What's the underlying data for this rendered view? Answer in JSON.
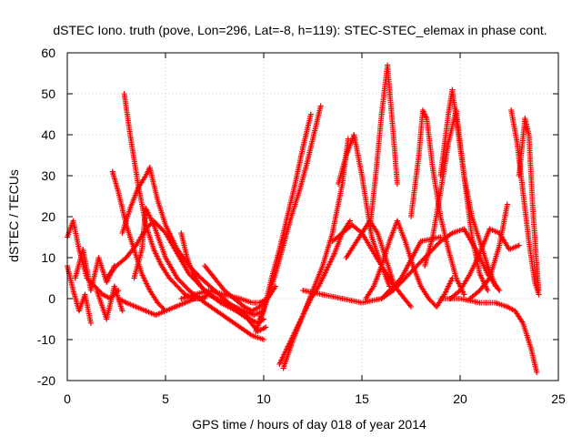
{
  "chart_data": {
    "type": "scatter",
    "title": "dSTEC Iono. truth (pove, Lon=296, Lat=-8, h=119): STEC-STEC_elemax in phase cont.",
    "xlabel": "GPS time / hours of day 018 of year 2014",
    "ylabel": "dSTEC  / TECUs",
    "xlim": [
      0,
      25
    ],
    "ylim": [
      -20,
      60
    ],
    "xticks": [
      0,
      5,
      10,
      15,
      20,
      25
    ],
    "yticks": [
      -20,
      -10,
      0,
      10,
      20,
      30,
      40,
      50,
      60
    ],
    "grid": true,
    "marker": "plus",
    "color": "#ff0000",
    "series": [
      {
        "x": [
          0.0,
          0.3,
          0.6,
          1.0,
          1.4,
          1.8,
          2.2,
          2.6
        ],
        "y": [
          15,
          19,
          12,
          5,
          3,
          1,
          0,
          2
        ]
      },
      {
        "x": [
          0.0,
          0.3,
          0.6,
          0.9,
          1.2
        ],
        "y": [
          8,
          2,
          -3,
          1,
          -6
        ]
      },
      {
        "x": [
          0.4,
          0.8,
          1.2,
          1.6,
          2.0,
          2.4
        ],
        "y": [
          5,
          12,
          2,
          10,
          4,
          8
        ]
      },
      {
        "x": [
          1.5,
          2.0,
          2.4,
          2.8
        ],
        "y": [
          2,
          -5,
          3,
          -3
        ]
      },
      {
        "x": [
          2.3,
          2.6,
          3.0,
          3.4,
          3.8,
          4.2,
          4.6,
          5.0
        ],
        "y": [
          31,
          26,
          18,
          12,
          6,
          2,
          -1,
          -3
        ]
      },
      {
        "x": [
          2.9,
          3.2,
          3.6,
          4.0,
          4.4,
          4.8,
          5.2,
          5.6,
          6.0,
          6.4,
          6.8,
          7.2
        ],
        "y": [
          50,
          40,
          28,
          18,
          12,
          8,
          5,
          3,
          1,
          0,
          0,
          1
        ]
      },
      {
        "x": [
          2.8,
          3.2,
          3.6,
          4.0,
          4.2
        ],
        "y": [
          16,
          22,
          27,
          30,
          32
        ]
      },
      {
        "x": [
          4.2,
          4.6,
          5.0,
          5.6,
          6.2,
          6.8,
          7.5,
          8.2,
          8.8,
          9.3,
          9.7,
          10.0
        ],
        "y": [
          32,
          24,
          18,
          12,
          8,
          5,
          2,
          -1,
          -3,
          -5,
          -6,
          -5
        ]
      },
      {
        "x": [
          2.0,
          2.5,
          3.0,
          3.5,
          4.0,
          4.4,
          5.0,
          5.6,
          6.2,
          7.0,
          7.8,
          8.6,
          9.2,
          9.7,
          10.1
        ],
        "y": [
          5,
          8,
          10,
          13,
          17,
          19,
          16,
          11,
          6,
          2,
          -1,
          -3,
          -5,
          -8,
          -7
        ]
      },
      {
        "x": [
          3.4,
          3.8,
          4.0,
          4.4,
          5.0,
          5.6,
          6.2,
          7.0,
          7.6,
          8.2,
          8.8,
          9.4,
          10.0
        ],
        "y": [
          5,
          12,
          22,
          18,
          10,
          5,
          2,
          -1,
          -3,
          -5,
          -7,
          -9,
          -10
        ]
      },
      {
        "x": [
          2.6,
          3.0,
          3.5,
          4.0,
          4.5,
          5.0,
          5.5,
          6.0,
          6.5,
          7.0
        ],
        "y": [
          0,
          -1,
          -2,
          -3,
          -4,
          -3,
          -2,
          -1,
          0,
          0
        ]
      },
      {
        "x": [
          5.8,
          6.1,
          6.4,
          6.8,
          7.2,
          7.6,
          8.0,
          8.5,
          9.0,
          9.5,
          10.0
        ],
        "y": [
          16,
          10,
          6,
          3,
          1,
          0,
          -1,
          -2,
          -3,
          -4,
          -3
        ]
      },
      {
        "x": [
          7.0,
          7.5,
          8.0,
          8.5,
          9.0,
          9.4,
          9.8,
          10.2,
          10.6
        ],
        "y": [
          8,
          5,
          2,
          0,
          -2,
          -3,
          -2,
          0,
          3
        ]
      },
      {
        "x": [
          5.8,
          6.5,
          7.2,
          8.0,
          8.8,
          9.4,
          9.8,
          10.2
        ],
        "y": [
          0,
          1,
          2,
          1,
          0,
          -1,
          -1,
          0
        ]
      },
      {
        "x": [
          9.6,
          10.0,
          10.4,
          10.8,
          11.2,
          11.6,
          12.0,
          12.4
        ],
        "y": [
          -8,
          -3,
          5,
          12,
          20,
          28,
          37,
          45
        ]
      },
      {
        "x": [
          9.8,
          10.2,
          10.6,
          11.0,
          11.4,
          11.8,
          12.2,
          12.6,
          12.9
        ],
        "y": [
          -5,
          0,
          6,
          13,
          20,
          26,
          33,
          41,
          47
        ]
      },
      {
        "x": [
          10.8,
          11.2,
          11.6,
          12.0,
          12.4,
          12.8,
          13.2,
          13.6,
          14.0,
          14.4
        ],
        "y": [
          -16,
          -12,
          -8,
          -4,
          0,
          3,
          7,
          11,
          16,
          19
        ]
      },
      {
        "x": [
          11.0,
          11.5,
          12.0,
          12.5,
          13.0,
          13.5,
          14.0,
          14.3
        ],
        "y": [
          -17,
          -10,
          -4,
          2,
          8,
          16,
          28,
          39
        ]
      },
      {
        "x": [
          12.0,
          13.0,
          14.0,
          15.0,
          16.0,
          17.0,
          18.0,
          19.0
        ],
        "y": [
          2,
          1,
          0,
          -1,
          0,
          5,
          14,
          15
        ]
      },
      {
        "x": [
          13.5,
          14.0,
          14.5,
          15.0,
          15.5,
          16.0,
          16.5,
          17.0,
          17.5
        ],
        "y": [
          14,
          16,
          18,
          16,
          12,
          8,
          4,
          1,
          -2
        ]
      },
      {
        "x": [
          13.8,
          14.2,
          14.6,
          15.0,
          15.5,
          16.0,
          16.4
        ],
        "y": [
          28,
          35,
          40,
          30,
          15,
          8,
          3
        ]
      },
      {
        "x": [
          14.2,
          14.6,
          15.0,
          15.4,
          15.8,
          16.2,
          16.6
        ],
        "y": [
          10,
          13,
          16,
          19,
          16,
          10,
          4
        ]
      },
      {
        "x": [
          15.2,
          15.6,
          16.0,
          16.4,
          16.8,
          17.2,
          17.6,
          18.0,
          18.4,
          18.8,
          19.2,
          19.6
        ],
        "y": [
          0,
          3,
          8,
          14,
          19,
          14,
          8,
          3,
          0,
          -2,
          1,
          5
        ]
      },
      {
        "x": [
          15.4,
          15.7,
          16.0,
          16.3,
          16.6,
          16.8
        ],
        "y": [
          17,
          30,
          45,
          57,
          40,
          28
        ]
      },
      {
        "x": [
          16.0,
          16.6,
          17.2,
          17.8,
          18.4,
          19.0,
          19.6,
          20.2,
          20.8,
          21.4,
          22.0
        ],
        "y": [
          0,
          2,
          5,
          8,
          11,
          14,
          16,
          17,
          12,
          6,
          2
        ]
      },
      {
        "x": [
          17.5,
          17.9,
          18.1,
          18.3,
          18.6,
          19.0,
          19.4,
          19.8,
          20.2
        ],
        "y": [
          20,
          35,
          46,
          44,
          32,
          20,
          12,
          5,
          1
        ]
      },
      {
        "x": [
          18.2,
          18.6,
          19.0,
          19.4,
          19.8,
          20.2,
          20.6,
          21.0,
          21.4
        ],
        "y": [
          8,
          15,
          26,
          38,
          46,
          30,
          15,
          6,
          2
        ]
      },
      {
        "x": [
          19.0,
          19.4,
          19.6,
          19.8,
          20.2,
          20.6,
          21.0,
          21.4,
          21.8
        ],
        "y": [
          30,
          45,
          51,
          44,
          30,
          20,
          14,
          8,
          3
        ]
      },
      {
        "x": [
          19.5,
          20.0,
          20.5,
          21.0,
          21.5,
          22.0,
          22.5,
          23.0
        ],
        "y": [
          0,
          2,
          6,
          11,
          17,
          16,
          12,
          13
        ]
      },
      {
        "x": [
          20.5,
          21.0,
          21.5,
          22.0,
          22.4
        ],
        "y": [
          0,
          2,
          5,
          13,
          23
        ]
      },
      {
        "x": [
          19.0,
          20.0,
          21.0,
          21.8,
          22.4,
          22.8,
          23.2,
          23.6,
          23.9
        ],
        "y": [
          0,
          0,
          -1,
          -1,
          -2,
          -3,
          -6,
          -12,
          -18
        ]
      },
      {
        "x": [
          22.6,
          22.9,
          23.2,
          23.5,
          23.8,
          24.0
        ],
        "y": [
          46,
          38,
          26,
          14,
          4,
          1
        ]
      },
      {
        "x": [
          23.0,
          23.3,
          23.5,
          23.7,
          23.9,
          24.0
        ],
        "y": [
          30,
          44,
          40,
          22,
          8,
          2
        ]
      }
    ]
  }
}
